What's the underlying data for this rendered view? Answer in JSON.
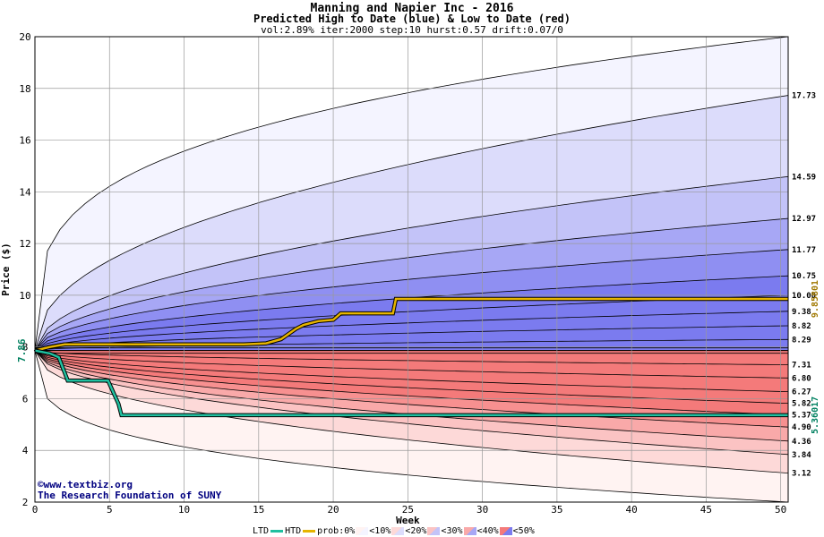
{
  "chart_data": {
    "type": "area",
    "title": "Manning and Napier Inc - 2016",
    "subtitle": "Predicted High to Date (blue) &  Low to Date (red)",
    "params": "vol:2.89% iter:2000 step:10 hurst:0.57 drift:0.07/0",
    "xlabel": "Week",
    "ylabel": "Price ($)",
    "xlim": [
      0,
      50.5
    ],
    "ylim": [
      2,
      20
    ],
    "x_ticks": [
      0,
      5,
      10,
      15,
      20,
      25,
      30,
      35,
      40,
      45,
      50
    ],
    "y_ticks": [
      2,
      4,
      6,
      8,
      10,
      12,
      14,
      16,
      18,
      20
    ],
    "start_price": 7.86,
    "start_label": "7.86",
    "high_bands": [
      {
        "prob": "<10%",
        "end": 20.0,
        "color": "#f4f4ff"
      },
      {
        "prob": "<20%",
        "end": 17.73,
        "color": "#dcdcfb"
      },
      {
        "prob": "<30%",
        "end": 14.59,
        "color": "#c3c3f8"
      },
      {
        "prob": "<40%",
        "end": 12.97,
        "color": "#a7a7f5"
      },
      {
        "prob": "<50%",
        "end": 11.77,
        "color": "#8f8ff2"
      },
      {
        "prob": "<50%",
        "end": 10.75,
        "color": "#7b7bef"
      }
    ],
    "high_quantile_ends": [
      10.0,
      9.38,
      8.82,
      8.29
    ],
    "low_bands": [
      {
        "prob": "<10%",
        "end": 2.0,
        "color": "#fff3f2"
      },
      {
        "prob": "<20%",
        "end": 3.12,
        "color": "#fdd9d8"
      },
      {
        "prob": "<30%",
        "end": 3.84,
        "color": "#fbc3c3"
      },
      {
        "prob": "<40%",
        "end": 4.36,
        "color": "#f9a9a9"
      },
      {
        "prob": "<50%",
        "end": 4.9,
        "color": "#f79090"
      },
      {
        "prob": "<50%",
        "end": 5.37,
        "color": "#f47a7a"
      }
    ],
    "low_quantile_ends": [
      5.82,
      6.27,
      6.8,
      7.31
    ],
    "right_labels": [
      "17.73",
      "14.59",
      "12.97",
      "11.77",
      "10.75",
      "10.00",
      "9.38",
      "8.82",
      "8.29",
      "7.31",
      "6.80",
      "6.27",
      "5.82",
      "5.37",
      "4.90",
      "4.36",
      "3.84",
      "3.12"
    ],
    "high_to_date": {
      "color": "#e6b400",
      "final": 9.85801,
      "final_label": "9.85801",
      "points": [
        [
          0,
          7.86
        ],
        [
          1,
          8.0
        ],
        [
          2,
          8.1
        ],
        [
          14,
          8.1
        ],
        [
          15.5,
          8.14
        ],
        [
          16.5,
          8.3
        ],
        [
          17,
          8.5
        ],
        [
          17.5,
          8.7
        ],
        [
          18,
          8.85
        ],
        [
          19,
          9.0
        ],
        [
          20,
          9.05
        ],
        [
          20.5,
          9.3
        ],
        [
          24,
          9.3
        ],
        [
          24.2,
          9.858
        ],
        [
          50.5,
          9.858
        ]
      ]
    },
    "low_to_date": {
      "color": "#20c0a0",
      "final": 5.36017,
      "final_label": "5.36017",
      "points": [
        [
          0,
          7.86
        ],
        [
          1,
          7.75
        ],
        [
          1.6,
          7.6
        ],
        [
          2.2,
          6.7
        ],
        [
          4.9,
          6.7
        ],
        [
          5.6,
          5.8
        ],
        [
          5.8,
          5.36
        ],
        [
          50.5,
          5.36
        ]
      ]
    }
  },
  "credits": {
    "line1": "©www.textbiz.org",
    "line2": "The Research Foundation of SUNY"
  },
  "legend": {
    "ltd_label": "LTD",
    "htd_label": "HTD",
    "prob_label": "prob:0%",
    "items": [
      {
        "label": "<10%",
        "color": "#fff3f2",
        "color2": "#f4f4ff"
      },
      {
        "label": "<20%",
        "color": "#fdd9d8",
        "color2": "#dcdcfb"
      },
      {
        "label": "<30%",
        "color": "#fbc3c3",
        "color2": "#c3c3f8"
      },
      {
        "label": "<40%",
        "color": "#f9a9a9",
        "color2": "#a7a7f5"
      },
      {
        "label": "<50%",
        "color": "#f47a7a",
        "color2": "#7b7bef"
      }
    ]
  }
}
